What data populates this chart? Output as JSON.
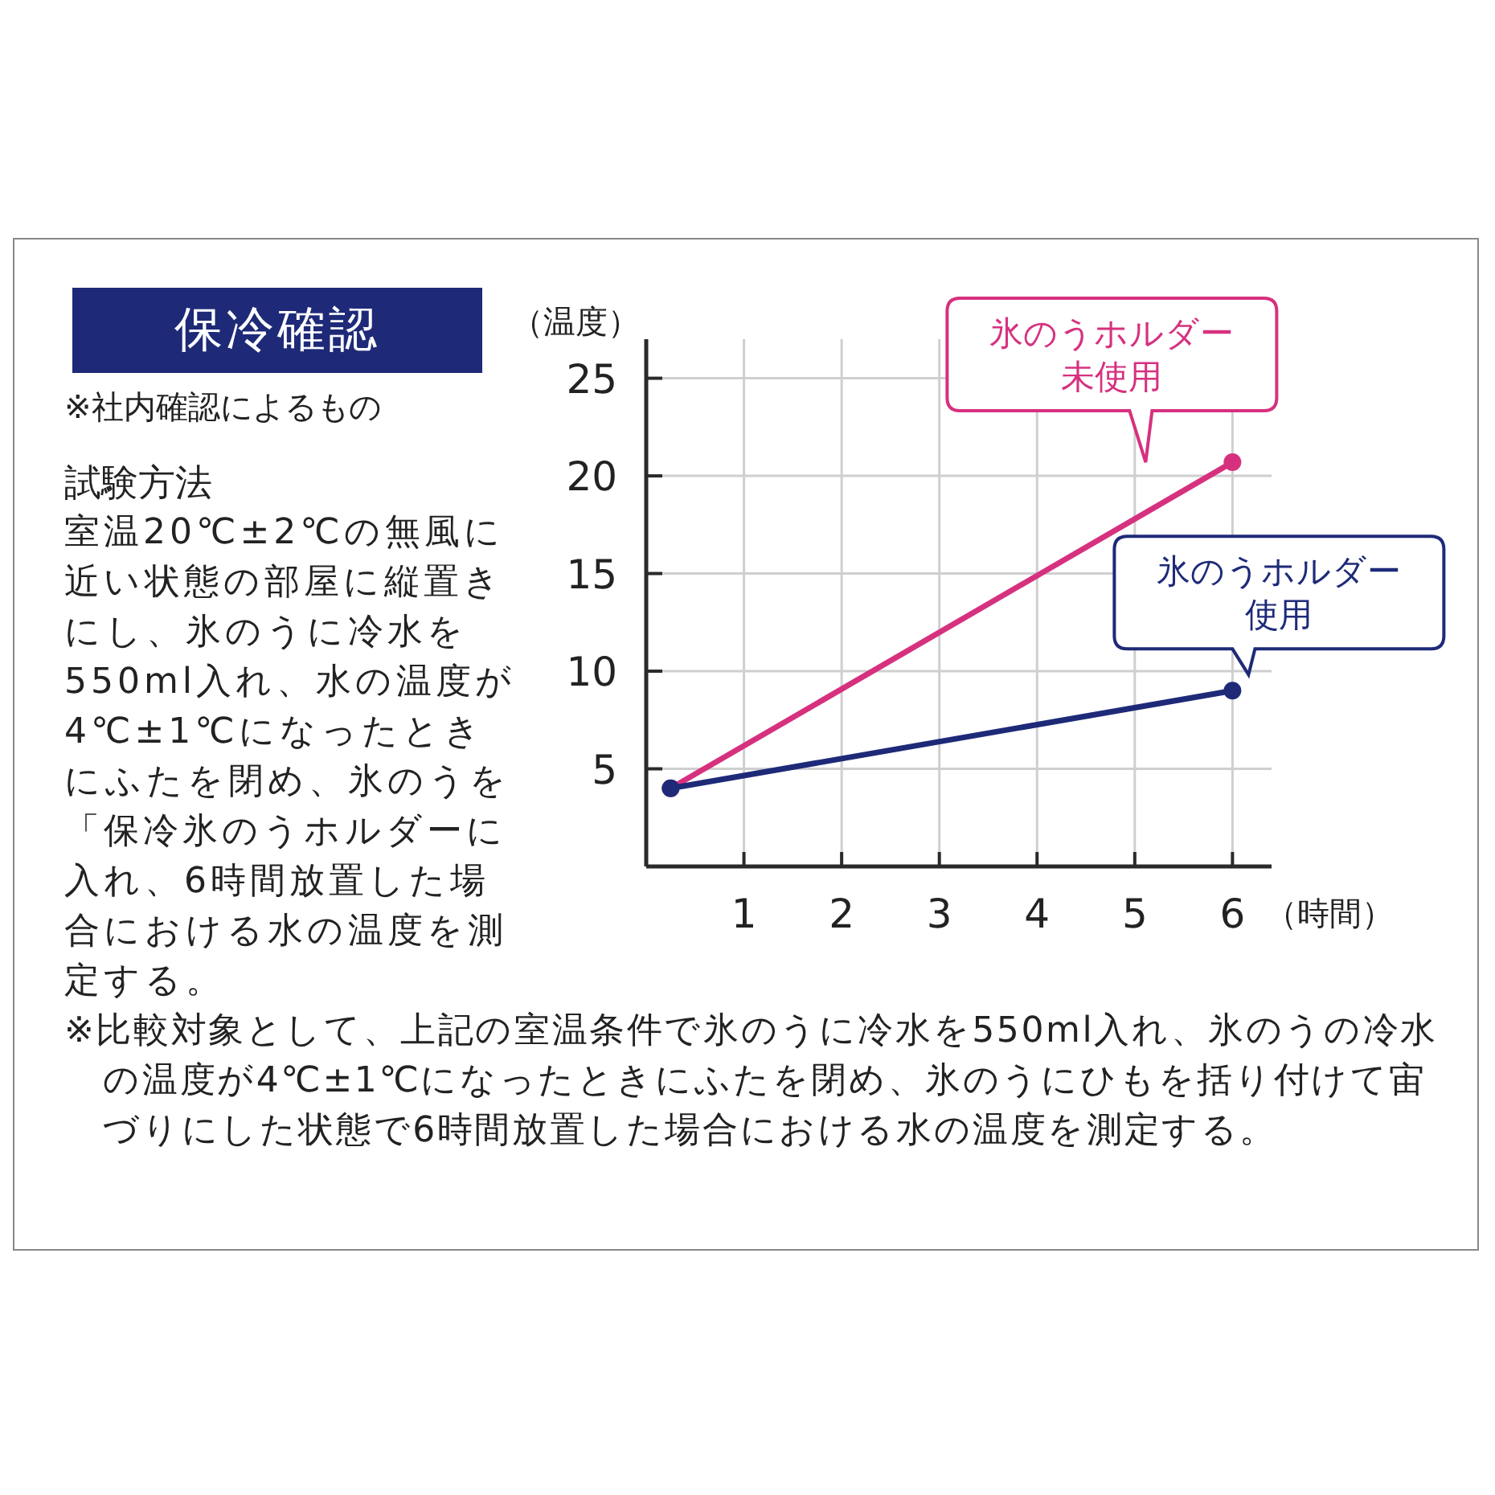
{
  "chart_data": {
    "type": "line",
    "title": "保冷確認",
    "subtitle": "※社内確認によるもの",
    "xlabel": "（時間）",
    "ylabel": "（温度）",
    "x": [
      0.25,
      6
    ],
    "series": [
      {
        "name": "氷のうホルダー未使用",
        "color": "#d6317f",
        "values": [
          4,
          20.7
        ]
      },
      {
        "name": "氷のうホルダー使用",
        "color": "#1e2a78",
        "values": [
          4,
          9
        ]
      }
    ],
    "xlim": [
      0,
      6.4
    ],
    "ylim": [
      0,
      27
    ],
    "xticks": [
      1,
      2,
      3,
      4,
      5,
      6
    ],
    "yticks": [
      5,
      10,
      15,
      20,
      25
    ],
    "grid": true,
    "marker": "circle",
    "legend": false,
    "annotations": [
      "試験方法",
      "室温20℃±2℃の無風に近い状態の部屋に縦置きにし、氷のうに冷水を550ml入れ、水の温度が4℃±1℃になったときにふたを閉め、氷のうを「保冷氷のうホルダーに入れ、6時間放置した場合における水の温度を測定する。",
      "※比較対象として、上記の室温条件で氷のうに冷水を550ml入れ、氷のうの冷水の温度が4℃±1℃になったときにふたを閉め、氷のうにひもを括り付けて宙づりにした状態で6時間放置した場合における水の温度を測定する。"
    ]
  }
}
